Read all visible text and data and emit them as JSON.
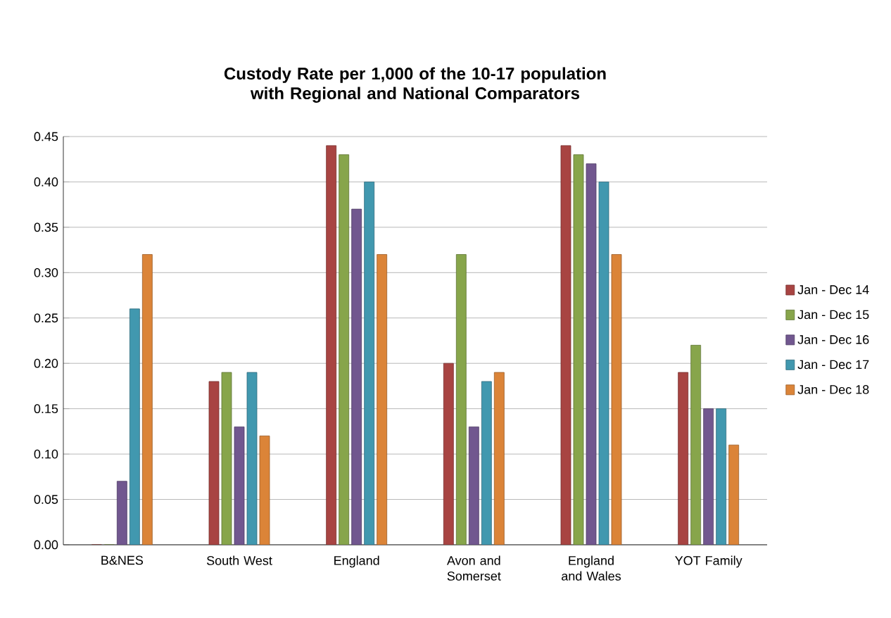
{
  "chart_data": {
    "type": "bar",
    "title": "Custody Rate per 1,000 of the 10-17 population with Regional and National Comparators",
    "categories": [
      "B&NES",
      "South West",
      "England",
      "Avon and Somerset",
      "England and Wales",
      "YOT Family"
    ],
    "series": [
      {
        "name": "Jan - Dec 14",
        "color": "#a84442",
        "values": [
          0,
          0.18,
          0.44,
          0.2,
          0.44,
          0.19
        ]
      },
      {
        "name": "Jan - Dec 15",
        "color": "#87a54b",
        "values": [
          0,
          0.19,
          0.43,
          0.32,
          0.43,
          0.22
        ]
      },
      {
        "name": "Jan - Dec 16",
        "color": "#71578f",
        "values": [
          0.07,
          0.13,
          0.37,
          0.13,
          0.42,
          0.15
        ]
      },
      {
        "name": "Jan - Dec 17",
        "color": "#4198af",
        "values": [
          0.26,
          0.19,
          0.4,
          0.18,
          0.4,
          0.15
        ]
      },
      {
        "name": "Jan - Dec 18",
        "color": "#db8438",
        "values": [
          0.32,
          0.12,
          0.32,
          0.19,
          0.32,
          0.11
        ]
      }
    ],
    "ylim": [
      0,
      0.45
    ],
    "yticks": [
      {
        "value": 0,
        "label": "0.00"
      },
      {
        "value": 0.05,
        "label": "0.05"
      },
      {
        "value": 0.1,
        "label": "0.10"
      },
      {
        "value": 0.15,
        "label": "0.15"
      },
      {
        "value": 0.2,
        "label": "0.20"
      },
      {
        "value": 0.25,
        "label": "0.25"
      },
      {
        "value": 0.3,
        "label": "0.30"
      },
      {
        "value": 0.35,
        "label": "0.35"
      },
      {
        "value": 0.4,
        "label": "0.40"
      },
      {
        "value": 0.45,
        "label": "0.45"
      }
    ],
    "grid": "y",
    "legend": "right"
  }
}
